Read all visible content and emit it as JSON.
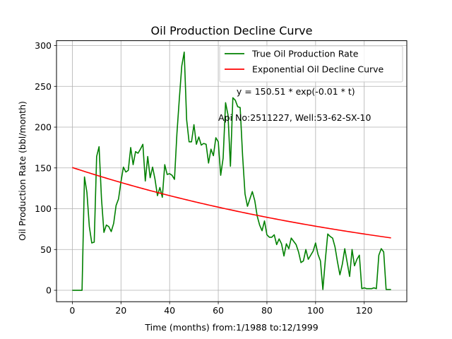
{
  "chart_data": {
    "type": "line",
    "title": "Oil Production Decline Curve",
    "xlabel": "Time (months) from:1/1988 to:12/1999",
    "ylabel": "Oil Production Rate (bbl/month)",
    "xlim": [
      -6.5,
      137.5
    ],
    "ylim": [
      -14,
      306
    ],
    "xticks": [
      0,
      20,
      40,
      60,
      80,
      100,
      120
    ],
    "yticks": [
      0,
      50,
      100,
      150,
      200,
      250,
      300
    ],
    "grid": true,
    "legend_position": "top-right",
    "annotations": [
      {
        "text": "y = 150.51 * exp(-0.01 * t)",
        "x": 67.5,
        "y": 240
      },
      {
        "text": "Api No:2511227, Well:53-62-SX-10",
        "x": 60,
        "y": 208
      }
    ],
    "series": [
      {
        "name": "True Oil Production Rate",
        "color": "#008000",
        "kind": "observed",
        "x": [
          0,
          1,
          2,
          3,
          4,
          5,
          6,
          7,
          8,
          9,
          10,
          11,
          12,
          13,
          14,
          15,
          16,
          17,
          18,
          19,
          20,
          21,
          22,
          23,
          24,
          25,
          26,
          27,
          28,
          29,
          30,
          31,
          32,
          33,
          34,
          35,
          36,
          37,
          38,
          39,
          40,
          41,
          42,
          43,
          44,
          45,
          46,
          47,
          48,
          49,
          50,
          51,
          52,
          53,
          54,
          55,
          56,
          57,
          58,
          59,
          60,
          61,
          62,
          63,
          64,
          65,
          66,
          67,
          68,
          69,
          70,
          71,
          72,
          73,
          74,
          75,
          76,
          77,
          78,
          79,
          80,
          81,
          82,
          83,
          84,
          85,
          86,
          87,
          88,
          89,
          90,
          91,
          92,
          93,
          94,
          95,
          96,
          97,
          98,
          99,
          100,
          101,
          102,
          103,
          104,
          105,
          106,
          107,
          108,
          109,
          110,
          111,
          112,
          113,
          114,
          115,
          116,
          117,
          118,
          119,
          120,
          121,
          122,
          123,
          124,
          125,
          126,
          127,
          128,
          129,
          130,
          131
        ],
        "y": [
          0,
          0,
          0,
          0,
          0,
          139,
          120,
          78,
          58,
          59,
          164,
          176,
          112,
          71,
          80,
          78,
          72,
          82,
          104,
          112,
          133,
          151,
          145,
          147,
          175,
          154,
          170,
          168,
          173,
          179,
          134,
          164,
          138,
          151,
          136,
          116,
          126,
          114,
          154,
          142,
          143,
          141,
          136,
          192,
          235,
          275,
          292,
          209,
          182,
          182,
          203,
          179,
          188,
          178,
          180,
          179,
          156,
          173,
          165,
          187,
          182,
          141,
          162,
          230,
          215,
          152,
          236,
          233,
          225,
          224,
          165,
          118,
          103,
          112,
          121,
          110,
          91,
          80,
          73,
          85,
          68,
          65,
          65,
          68,
          56,
          63,
          57,
          42,
          57,
          51,
          64,
          60,
          56,
          47,
          34,
          36,
          50,
          38,
          43,
          48,
          58,
          44,
          36,
          1,
          37,
          69,
          66,
          64,
          53,
          35,
          19,
          32,
          51,
          34,
          17,
          50,
          30,
          38,
          43,
          2,
          3,
          2,
          2,
          2,
          3,
          2,
          43,
          51,
          47,
          1,
          1,
          1
        ]
      },
      {
        "name": "Exponential Oil Decline Curve",
        "color": "#ff0000",
        "kind": "fit",
        "a": 150.51,
        "b": -0.0065,
        "x_start": 0,
        "x_end": 131
      }
    ]
  }
}
